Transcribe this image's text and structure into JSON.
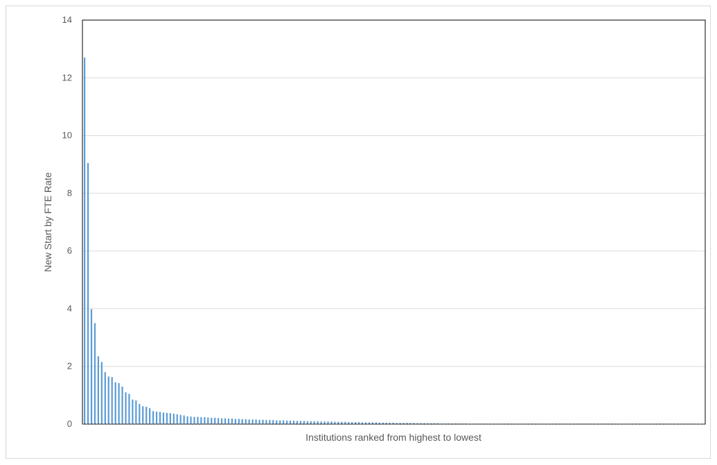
{
  "chart_data": {
    "type": "bar",
    "title": "",
    "xlabel": "Institutions ranked from highest to  lowest",
    "ylabel": "New Start by FTE Rate",
    "ylim": [
      0,
      14
    ],
    "yticks": [
      "0",
      "2",
      "4",
      "6",
      "8",
      "10",
      "12",
      "14"
    ],
    "grid": true,
    "legend": "none",
    "bar_color": "#5b9bd5",
    "values": [
      12.7,
      9.05,
      3.98,
      3.5,
      2.35,
      2.15,
      1.8,
      1.65,
      1.63,
      1.45,
      1.42,
      1.3,
      1.1,
      1.05,
      0.85,
      0.82,
      0.7,
      0.62,
      0.6,
      0.55,
      0.45,
      0.43,
      0.42,
      0.4,
      0.39,
      0.38,
      0.36,
      0.34,
      0.32,
      0.3,
      0.27,
      0.26,
      0.25,
      0.25,
      0.24,
      0.24,
      0.23,
      0.22,
      0.22,
      0.21,
      0.2,
      0.2,
      0.19,
      0.19,
      0.18,
      0.18,
      0.17,
      0.17,
      0.16,
      0.16,
      0.16,
      0.15,
      0.15,
      0.14,
      0.14,
      0.14,
      0.13,
      0.13,
      0.13,
      0.12,
      0.12,
      0.12,
      0.11,
      0.11,
      0.11,
      0.1,
      0.1,
      0.1,
      0.1,
      0.09,
      0.09,
      0.09,
      0.09,
      0.08,
      0.08,
      0.08,
      0.08,
      0.07,
      0.07,
      0.07,
      0.07,
      0.06,
      0.06,
      0.06,
      0.06,
      0.06,
      0.05,
      0.05,
      0.05,
      0.05,
      0.05,
      0.04,
      0.04,
      0.04,
      0.04,
      0.04,
      0.04,
      0.03,
      0.03,
      0.03,
      0.03,
      0.03,
      0.03,
      0.03,
      0.02,
      0.02,
      0.02,
      0.02,
      0.02,
      0.02,
      0.02,
      0.02,
      0.01,
      0.01,
      0.01,
      0.01,
      0.01,
      0.01,
      0.01,
      0.01,
      0.01,
      0.01,
      0.01,
      0.01,
      0.01,
      0.01,
      0.01,
      0.01,
      0.01,
      0.01,
      0.01,
      0.01,
      0.01,
      0.01,
      0.01,
      0.01,
      0.01,
      0.01,
      0.01,
      0.01,
      0.01,
      0.01,
      0.01,
      0.01,
      0.01,
      0.01,
      0.01,
      0.01,
      0.01,
      0.01,
      0.01,
      0.01,
      0.01,
      0.01,
      0.01,
      0.01,
      0.01,
      0.01,
      0.01,
      0.01,
      0.01,
      0.01,
      0.01,
      0.01,
      0.01,
      0.01,
      0.01,
      0.01
    ]
  }
}
